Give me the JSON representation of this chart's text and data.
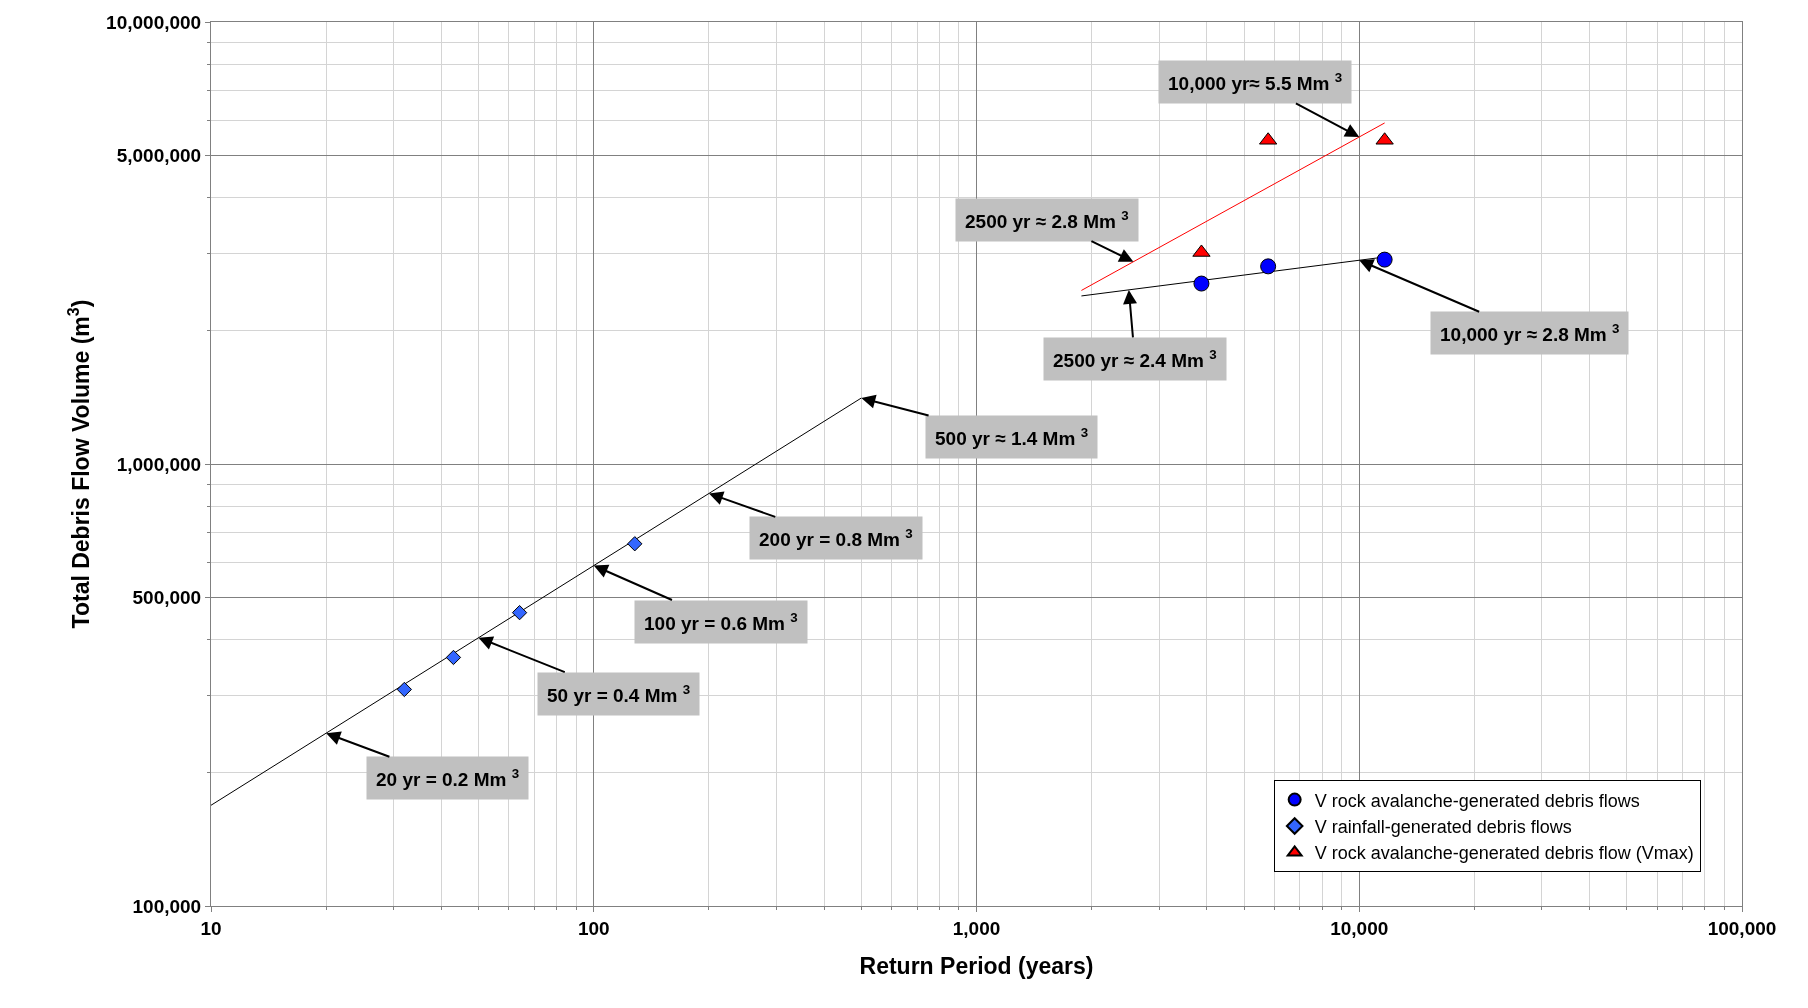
{
  "chart_data": {
    "type": "scatter",
    "xlabel": "Return Period (years)",
    "ylabel": "Total Debris Flow Volume (m$^{3}$)",
    "log": "xy",
    "grid": true,
    "legend": "bottom right",
    "xlim": [
      10,
      100000
    ],
    "xticks": [
      10,
      {
        "value": 20,
        "label": null
      },
      {
        "value": 30,
        "label": null
      },
      {
        "value": 40,
        "label": null
      },
      {
        "value": 50,
        "label": null
      },
      {
        "value": 60,
        "label": null
      },
      {
        "value": 70,
        "label": null
      },
      {
        "value": 80,
        "label": null
      },
      {
        "value": 90,
        "label": null
      },
      100,
      {
        "value": 200,
        "label": null
      },
      {
        "value": 300,
        "label": null
      },
      {
        "value": 400,
        "label": null
      },
      {
        "value": 500,
        "label": null
      },
      {
        "value": 600,
        "label": null
      },
      {
        "value": 700,
        "label": null
      },
      {
        "value": 800,
        "label": null
      },
      {
        "value": 900,
        "label": null
      },
      {
        "value": 1000,
        "label": "1,000"
      },
      {
        "value": 2000,
        "label": null
      },
      {
        "value": 3000,
        "label": null
      },
      {
        "value": 4000,
        "label": null
      },
      {
        "value": 5000,
        "label": null
      },
      {
        "value": 6000,
        "label": null
      },
      {
        "value": 7000,
        "label": null
      },
      {
        "value": 8000,
        "label": null
      },
      {
        "value": 9000,
        "label": null
      },
      {
        "value": 10000,
        "label": "10,000"
      },
      {
        "value": 20000,
        "label": null
      },
      {
        "value": 30000,
        "label": null
      },
      {
        "value": 40000,
        "label": null
      },
      {
        "value": 50000,
        "label": null
      },
      {
        "value": 60000,
        "label": null
      },
      {
        "value": 70000,
        "label": null
      },
      {
        "value": 80000,
        "label": null
      },
      {
        "value": 90000,
        "label": null
      },
      {
        "value": 100000,
        "label": "100,000"
      }
    ],
    "ylim": [
      100000,
      10000000
    ],
    "yticks": [
      {
        "value": 100000,
        "label": "100,000"
      },
      {
        "value": 200000,
        "label": null
      },
      {
        "value": 300000,
        "label": null
      },
      {
        "value": 400000,
        "label": null
      },
      {
        "value": 500000,
        "label": "500,000"
      },
      {
        "value": 600000,
        "label": null
      },
      {
        "value": 700000,
        "label": null
      },
      {
        "value": 800000,
        "label": null
      },
      {
        "value": 900000,
        "label": null
      },
      {
        "value": 1000000,
        "label": "1,000,000"
      },
      {
        "value": 2000000,
        "label": null
      },
      {
        "value": 3000000,
        "label": null
      },
      {
        "value": 4000000,
        "label": null
      },
      {
        "value": 5000000,
        "label": "5,000,000"
      },
      {
        "value": 6000000,
        "label": null
      },
      {
        "value": 7000000,
        "label": null
      },
      {
        "value": 8000000,
        "label": null
      },
      {
        "value": 9000000,
        "label": null
      },
      {
        "value": 10000000,
        "label": "10,000,000"
      }
    ],
    "series": [
      {
        "type": "line",
        "color": "#000000",
        "x": [
          10,
          500
        ],
        "values": [
          169000,
          1410000
        ]
      },
      {
        "type": "line",
        "color": "#000000",
        "x": [
          1880,
          11650
        ],
        "values": [
          2400000,
          2940000
        ]
      },
      {
        "type": "line",
        "color": "#ff0000",
        "x": [
          1880,
          11650
        ],
        "values": [
          2470000,
          5910000
        ]
      },
      {
        "name": "V rock avalanche-generated debris flows",
        "color": "#0000ff",
        "marker": "circle",
        "x": [
          3870,
          5780,
          11650
        ],
        "values": [
          2560000,
          2800000,
          2900000
        ]
      },
      {
        "name": "V rainfall-generated debris flows",
        "color": "#3366ff",
        "marker": "diamond",
        "x": [
          32,
          43,
          64,
          128
        ],
        "values": [
          309000,
          365000,
          461000,
          660000
        ]
      },
      {
        "name": "V rock avalanche-generated debris flow (Vmax)",
        "color": "#ff0000",
        "marker": "triangle",
        "x": [
          3870,
          5780,
          11650
        ],
        "values": [
          3010000,
          5400000,
          5400000
        ]
      }
    ],
    "annotations": [
      {
        "text": "20 yr = 0.2 Mm $^{3}$",
        "x": 20,
        "y": 246000
      },
      {
        "text": "50 yr = 0.4 Mm $^{3}$",
        "x": 50,
        "y": 404600
      },
      {
        "text": "100 yr = 0.6 Mm $^{3}$",
        "x": 100,
        "y": 589300
      },
      {
        "text": "200 yr = 0.8 Mm $^{3}$",
        "x": 200,
        "y": 858000
      },
      {
        "text": "500 yr ≈ 1.4 Mm $^{3}$",
        "x": 500,
        "y": 1410000
      },
      {
        "text": "2500 yr ≈ 2.8 Mm $^{3}$",
        "x": 2570,
        "y": 2869000
      },
      {
        "text": "2500 yr ≈ 2.4 Mm $^{3}$",
        "x": 2500,
        "y": 2477000
      },
      {
        "text": "10,000 yr≈ 5.5 Mm $^{3}$",
        "x": 10000,
        "y": 5494000
      },
      {
        "text": "10,000 yr ≈ 2.8 Mm $^{3}$",
        "x": 10000,
        "y": 2890000
      }
    ]
  }
}
